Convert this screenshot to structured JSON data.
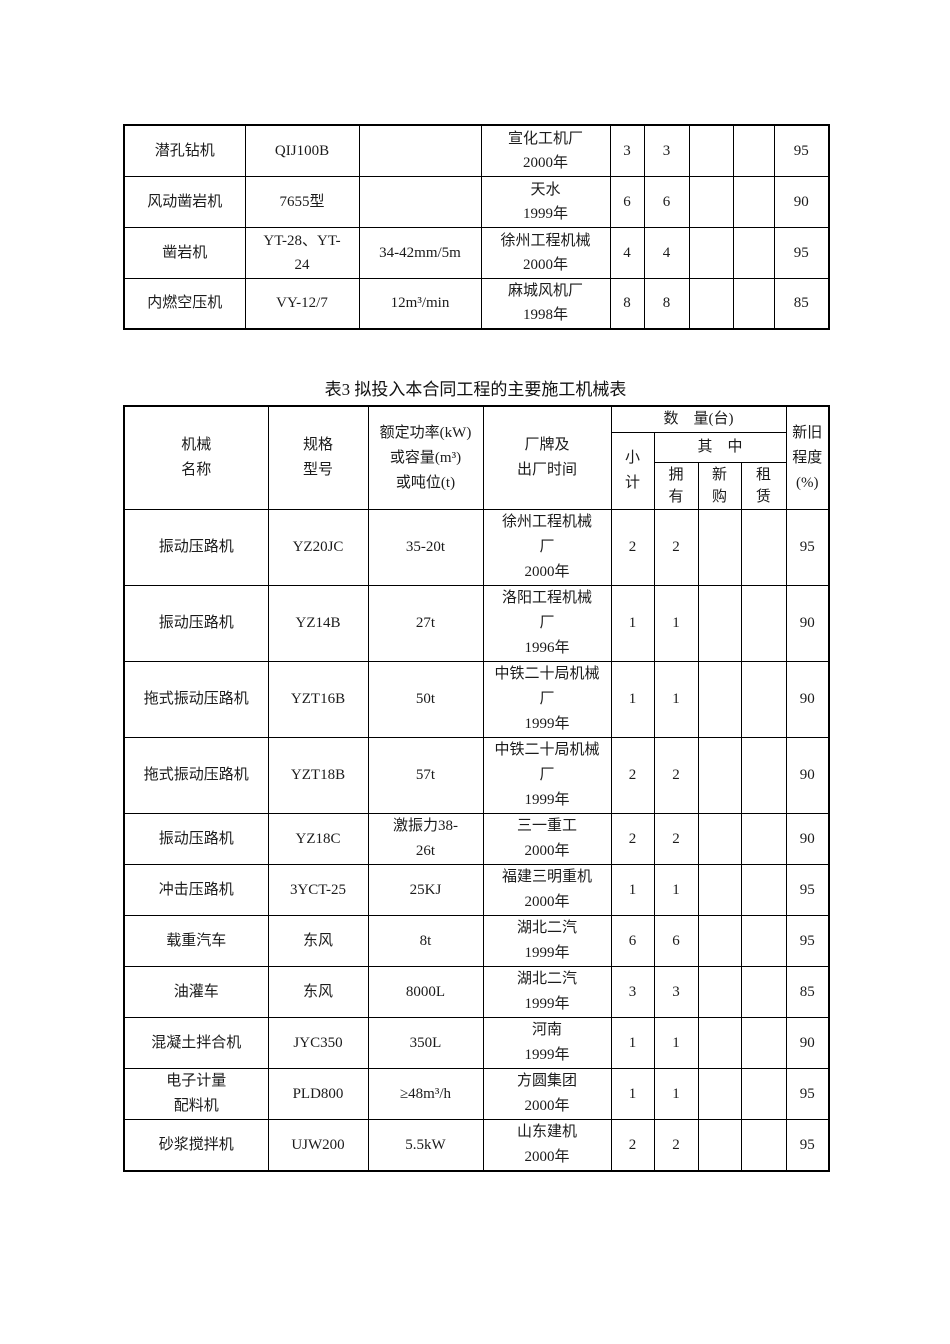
{
  "page": {
    "table3_title": "表3 拟投入本合同工程的主要施工机械表"
  },
  "table1": {
    "rows": [
      {
        "name": "潜孔钻机",
        "model": "QIJ100B",
        "power": "",
        "maker": "宣化工机厂\n2000年",
        "subtotal": "3",
        "owned": "3",
        "new_purchase": "",
        "rent": "",
        "condition": "95"
      },
      {
        "name": "风动凿岩机",
        "model": "7655型",
        "power": "",
        "maker": "天水\n1999年",
        "subtotal": "6",
        "owned": "6",
        "new_purchase": "",
        "rent": "",
        "condition": "90"
      },
      {
        "name": "凿岩机",
        "model": "YT-28、YT-\n24",
        "power": "34-42mm/5m",
        "maker": "徐州工程机械\n2000年",
        "subtotal": "4",
        "owned": "4",
        "new_purchase": "",
        "rent": "",
        "condition": "95"
      },
      {
        "name": "内燃空压机",
        "model": "VY-12/7",
        "power": "12m³/min",
        "maker": "麻城风机厂\n1998年",
        "subtotal": "8",
        "owned": "8",
        "new_purchase": "",
        "rent": "",
        "condition": "85"
      }
    ]
  },
  "table2": {
    "header": {
      "name": "机械\n名称",
      "model": "规格\n型号",
      "power": "额定功率(kW)\n或容量(m³)\n或吨位(t)",
      "maker": "厂牌及\n出厂时间",
      "quantity": "数　量(台)",
      "subtotal": "小\n计",
      "among": "其　中",
      "owned": "拥\n有",
      "new_purchase": "新\n购",
      "rent": "租\n赁",
      "condition": "新旧\n程度\n(%)"
    },
    "rows": [
      {
        "name": "振动压路机",
        "model": "YZ20JC",
        "power": "35-20t",
        "maker": "徐州工程机械\n厂\n2000年",
        "subtotal": "2",
        "owned": "2",
        "new_purchase": "",
        "rent": "",
        "condition": "95"
      },
      {
        "name": "振动压路机",
        "model": "YZ14B",
        "power": "27t",
        "maker": "洛阳工程机械\n厂\n1996年",
        "subtotal": "1",
        "owned": "1",
        "new_purchase": "",
        "rent": "",
        "condition": "90"
      },
      {
        "name": "拖式振动压路机",
        "model": "YZT16B",
        "power": "50t",
        "maker": "中铁二十局机械\n厂\n1999年",
        "subtotal": "1",
        "owned": "1",
        "new_purchase": "",
        "rent": "",
        "condition": "90"
      },
      {
        "name": "拖式振动压路机",
        "model": "YZT18B",
        "power": "57t",
        "maker": "中铁二十局机械\n厂\n1999年",
        "subtotal": "2",
        "owned": "2",
        "new_purchase": "",
        "rent": "",
        "condition": "90"
      },
      {
        "name": "振动压路机",
        "model": "YZ18C",
        "power": "激振力38-\n26t",
        "maker": "三一重工\n2000年",
        "subtotal": "2",
        "owned": "2",
        "new_purchase": "",
        "rent": "",
        "condition": "90"
      },
      {
        "name": "冲击压路机",
        "model": "3YCT-25",
        "power": "25KJ",
        "maker": "福建三明重机\n2000年",
        "subtotal": "1",
        "owned": "1",
        "new_purchase": "",
        "rent": "",
        "condition": "95"
      },
      {
        "name": "载重汽车",
        "model": "东风",
        "power": "8t",
        "maker": "湖北二汽\n1999年",
        "subtotal": "6",
        "owned": "6",
        "new_purchase": "",
        "rent": "",
        "condition": "95"
      },
      {
        "name": "油灌车",
        "model": "东风",
        "power": "8000L",
        "maker": "湖北二汽\n1999年",
        "subtotal": "3",
        "owned": "3",
        "new_purchase": "",
        "rent": "",
        "condition": "85"
      },
      {
        "name": "混凝土拌合机",
        "model": "JYC350",
        "power": "350L",
        "maker": "河南\n1999年",
        "subtotal": "1",
        "owned": "1",
        "new_purchase": "",
        "rent": "",
        "condition": "90"
      },
      {
        "name": "电子计量\n配料机",
        "model": "PLD800",
        "power": "≥48m³/h",
        "maker": "方圆集团\n2000年",
        "subtotal": "1",
        "owned": "1",
        "new_purchase": "",
        "rent": "",
        "condition": "95"
      },
      {
        "name": "砂浆搅拌机",
        "model": "UJW200",
        "power": "5.5kW",
        "maker": "山东建机\n2000年",
        "subtotal": "2",
        "owned": "2",
        "new_purchase": "",
        "rent": "",
        "condition": "95"
      }
    ]
  }
}
